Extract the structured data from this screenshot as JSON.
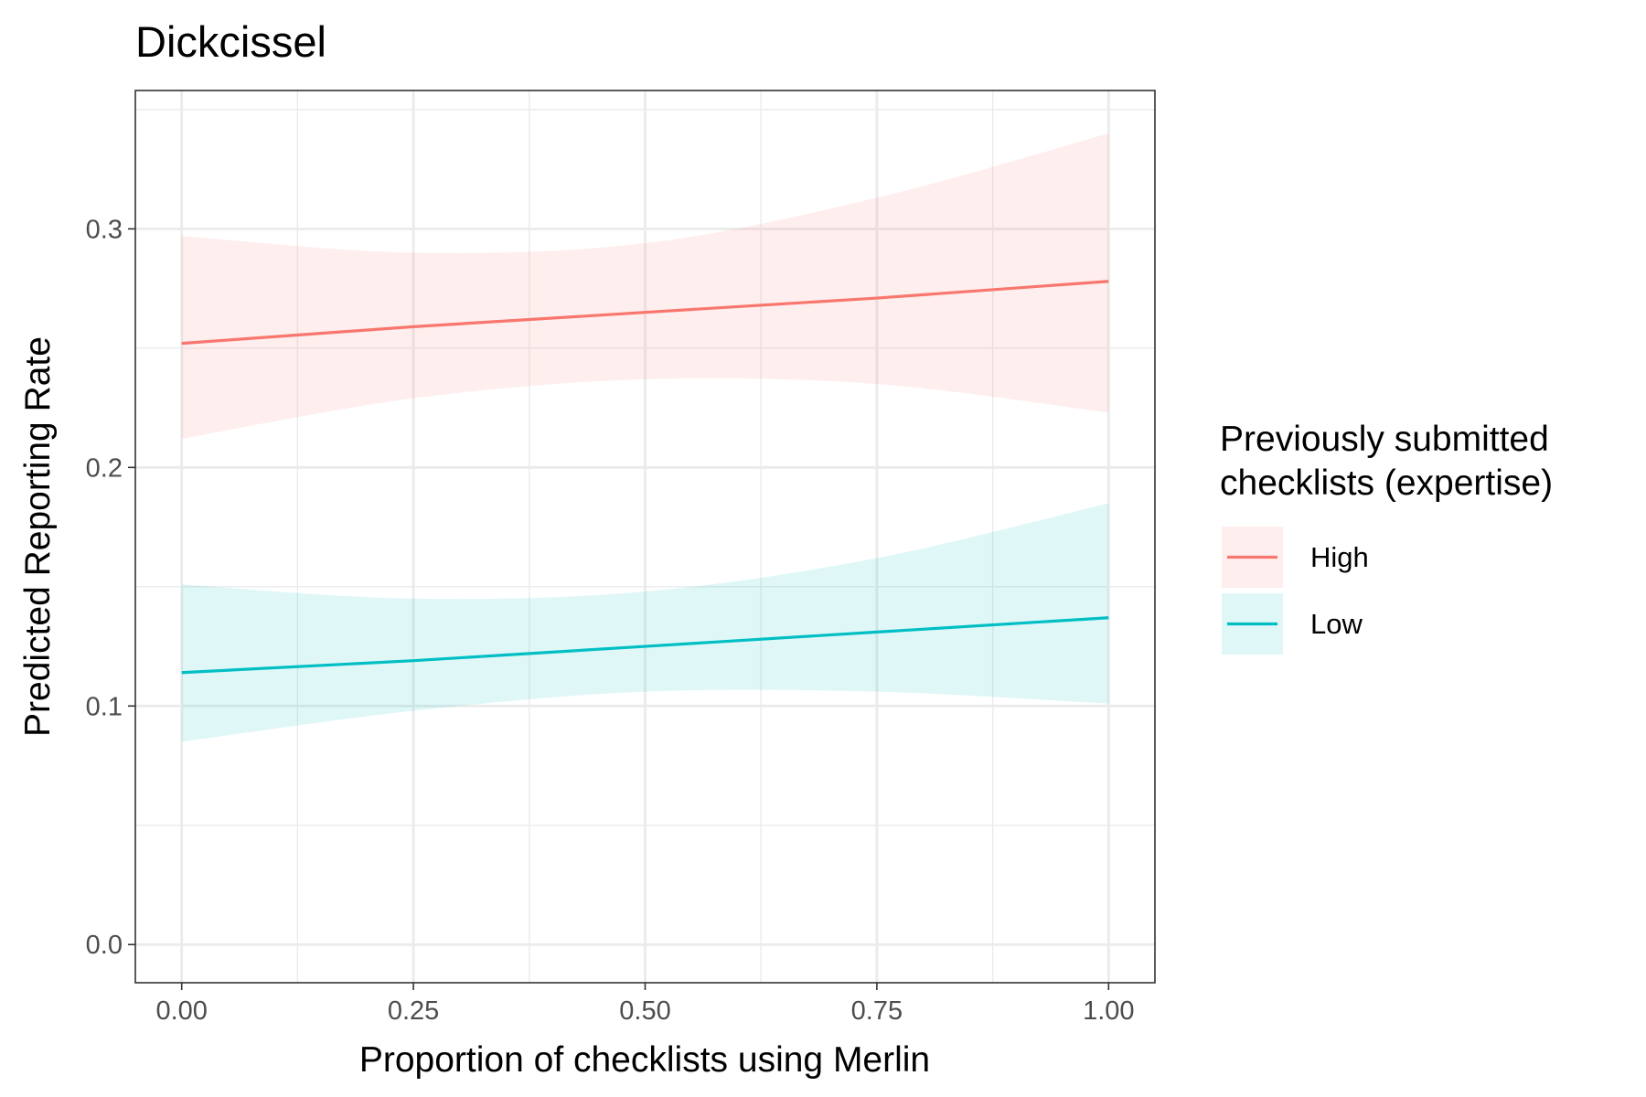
{
  "chart_data": {
    "type": "line",
    "title": "Dickcissel",
    "xlabel": "Proportion of checklists using Merlin",
    "ylabel": "Predicted Reporting Rate",
    "xlim": [
      -0.05,
      1.05
    ],
    "ylim": [
      -0.016,
      0.358
    ],
    "x_ticks": [
      0.0,
      0.25,
      0.5,
      0.75,
      1.0
    ],
    "x_tick_labels": [
      "0.00",
      "0.25",
      "0.50",
      "0.75",
      "1.00"
    ],
    "y_ticks": [
      0.0,
      0.1,
      0.2,
      0.3
    ],
    "y_tick_labels": [
      "0.0",
      "0.1",
      "0.2",
      "0.3"
    ],
    "grid": true,
    "legend": {
      "title_lines": [
        "Previously submitted",
        "checklists (expertise)"
      ],
      "placement": "right"
    },
    "series": [
      {
        "name": "High",
        "color": "#F8766D",
        "x": [
          0.0,
          0.25,
          0.5,
          0.75,
          1.0
        ],
        "values": [
          0.252,
          0.259,
          0.265,
          0.271,
          0.278
        ],
        "lower": [
          0.212,
          0.229,
          0.237,
          0.235,
          0.223
        ],
        "upper": [
          0.297,
          0.29,
          0.294,
          0.313,
          0.34
        ]
      },
      {
        "name": "Low",
        "color": "#00BFC4",
        "x": [
          0.0,
          0.25,
          0.5,
          0.75,
          1.0
        ],
        "values": [
          0.114,
          0.119,
          0.125,
          0.131,
          0.137
        ],
        "lower": [
          0.085,
          0.098,
          0.106,
          0.106,
          0.101
        ],
        "upper": [
          0.151,
          0.145,
          0.148,
          0.162,
          0.185
        ]
      }
    ]
  }
}
